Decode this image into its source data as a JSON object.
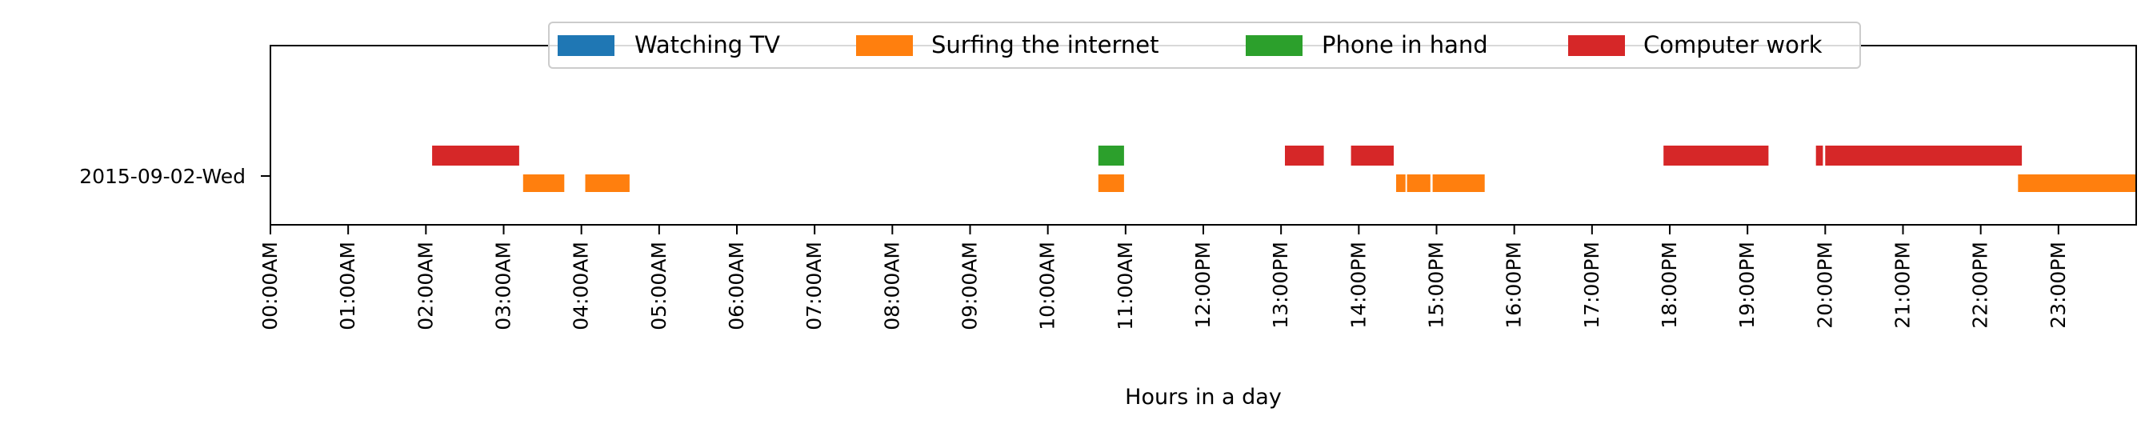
{
  "chart_data": {
    "type": "timeline",
    "title": "",
    "xlabel": "Hours in a day",
    "ylabel": "",
    "xlim": [
      0,
      24
    ],
    "x_ticks": [
      "00:00AM",
      "01:00AM",
      "02:00AM",
      "03:00AM",
      "04:00AM",
      "05:00AM",
      "06:00AM",
      "07:00AM",
      "08:00AM",
      "09:00AM",
      "10:00AM",
      "11:00AM",
      "12:00PM",
      "13:00PM",
      "14:00PM",
      "15:00PM",
      "16:00PM",
      "17:00PM",
      "18:00PM",
      "19:00PM",
      "20:00PM",
      "21:00PM",
      "22:00PM",
      "23:00PM"
    ],
    "rows": [
      "2015-09-02-Wed"
    ],
    "legend_placement": "upper-center",
    "grid": false,
    "series": [
      {
        "name": "Watching TV",
        "color": "#1f77b4",
        "lane": 0,
        "intervals": []
      },
      {
        "name": "Surfing the internet",
        "color": "#ff7f0e",
        "lane": 0,
        "intervals": [
          [
            3.25,
            3.78
          ],
          [
            4.05,
            4.62
          ],
          [
            10.65,
            10.98
          ],
          [
            14.48,
            14.6
          ],
          [
            14.62,
            14.92
          ],
          [
            14.95,
            15.62
          ],
          [
            22.48,
            24.0
          ]
        ]
      },
      {
        "name": "Phone in hand",
        "color": "#2ca02c",
        "lane": 1,
        "intervals": [
          [
            10.65,
            10.98
          ]
        ]
      },
      {
        "name": "Computer work",
        "color": "#d62728",
        "lane": 1,
        "intervals": [
          [
            2.08,
            3.2
          ],
          [
            13.05,
            13.55
          ],
          [
            13.9,
            14.45
          ],
          [
            17.92,
            19.27
          ],
          [
            19.88,
            19.97
          ],
          [
            20.0,
            22.53
          ]
        ]
      }
    ]
  }
}
